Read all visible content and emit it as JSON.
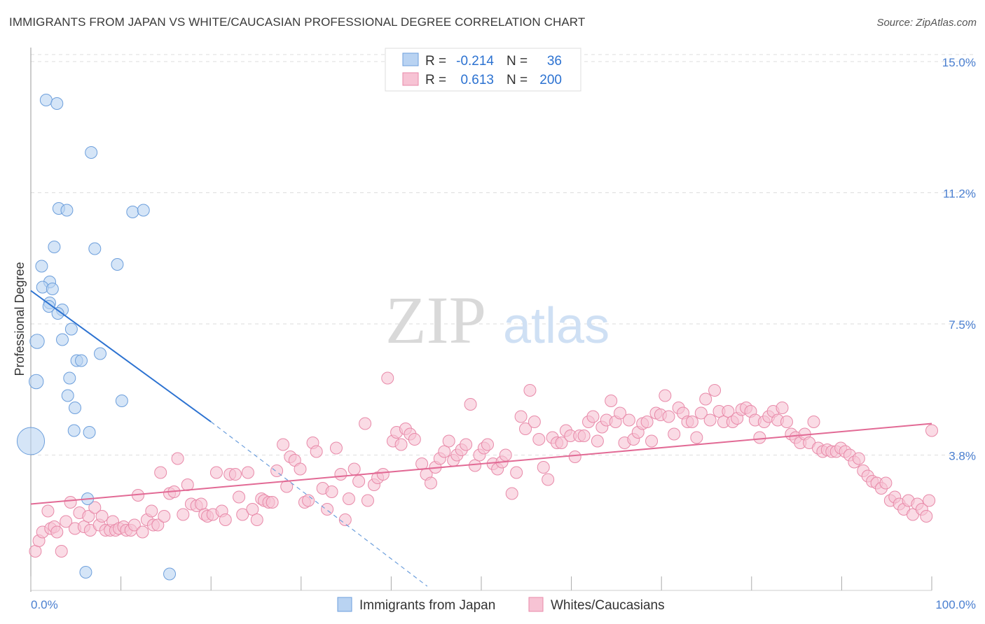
{
  "title": "IMMIGRANTS FROM JAPAN VS WHITE/CAUCASIAN PROFESSIONAL DEGREE CORRELATION CHART",
  "source": "Source: ZipAtlas.com",
  "watermark": {
    "zip": "ZIP",
    "atlas": "atlas"
  },
  "colors": {
    "blue_fill": "#b9d3f2",
    "blue_stroke": "#6d9fdc",
    "blue_line": "#2c72d1",
    "pink_fill": "#f7c3d4",
    "pink_stroke": "#e88aa9",
    "pink_line": "#e26a95",
    "tick_text": "#4a7fd0",
    "grid": "#dddddd"
  },
  "legend": {
    "rows": [
      {
        "r_label": "R =",
        "r_value": "-0.214",
        "n_label": "N =",
        "n_value": "36"
      },
      {
        "r_label": "R =",
        "r_value": "0.613",
        "n_label": "N =",
        "n_value": "200"
      }
    ]
  },
  "bottom_legend": [
    {
      "label": "Immigrants from Japan",
      "color": "blue"
    },
    {
      "label": "Whites/Caucasians",
      "color": "pink"
    }
  ],
  "chart_data": {
    "type": "scatter",
    "title": "IMMIGRANTS FROM JAPAN VS WHITE/CAUCASIAN PROFESSIONAL DEGREE CORRELATION CHART",
    "xlabel": "",
    "ylabel": "Professional Degree",
    "x_tick_labels": [
      "0.0%",
      "100.0%"
    ],
    "y_tick_labels": [
      "3.8%",
      "7.5%",
      "11.2%",
      "15.0%"
    ],
    "y_ticks": [
      3.75,
      7.5,
      11.25,
      15.0
    ],
    "xlim": [
      0,
      100
    ],
    "ylim": [
      0,
      15.4
    ],
    "grid": "horizontal dashed",
    "legend_position": "top-center",
    "series": [
      {
        "name": "Immigrants from Japan",
        "color": "blue",
        "r": -0.214,
        "n": 36,
        "trend": {
          "x": [
            0,
            20
          ],
          "y": [
            8.45,
            4.7
          ]
        },
        "trend_extension": {
          "x": [
            20,
            44
          ],
          "y": [
            4.7,
            0.0
          ]
        },
        "points": [
          {
            "x": 1.7,
            "y": 13.9,
            "s": 1
          },
          {
            "x": 2.9,
            "y": 13.8,
            "s": 1
          },
          {
            "x": 6.7,
            "y": 12.4,
            "s": 1
          },
          {
            "x": 3.1,
            "y": 10.8,
            "s": 1
          },
          {
            "x": 4.0,
            "y": 10.75,
            "s": 1
          },
          {
            "x": 11.3,
            "y": 10.7,
            "s": 1
          },
          {
            "x": 12.5,
            "y": 10.75,
            "s": 1
          },
          {
            "x": 2.6,
            "y": 9.7,
            "s": 1
          },
          {
            "x": 7.1,
            "y": 9.65,
            "s": 1
          },
          {
            "x": 9.6,
            "y": 9.2,
            "s": 1
          },
          {
            "x": 1.2,
            "y": 9.15,
            "s": 1
          },
          {
            "x": 2.1,
            "y": 8.7,
            "s": 1
          },
          {
            "x": 1.3,
            "y": 8.55,
            "s": 1
          },
          {
            "x": 2.4,
            "y": 8.5,
            "s": 1
          },
          {
            "x": 2.1,
            "y": 8.1,
            "s": 1
          },
          {
            "x": 2.0,
            "y": 8.0,
            "s": 1
          },
          {
            "x": 3.5,
            "y": 7.9,
            "s": 1
          },
          {
            "x": 3.0,
            "y": 7.8,
            "s": 1
          },
          {
            "x": 4.5,
            "y": 7.35,
            "s": 1
          },
          {
            "x": 0.7,
            "y": 7.0,
            "s": 1.2
          },
          {
            "x": 3.5,
            "y": 7.05,
            "s": 1
          },
          {
            "x": 7.7,
            "y": 6.65,
            "s": 1
          },
          {
            "x": 5.1,
            "y": 6.45,
            "s": 1
          },
          {
            "x": 5.6,
            "y": 6.45,
            "s": 1
          },
          {
            "x": 4.3,
            "y": 5.95,
            "s": 1
          },
          {
            "x": 0.6,
            "y": 5.85,
            "s": 1.2
          },
          {
            "x": 4.1,
            "y": 5.45,
            "s": 1
          },
          {
            "x": 10.1,
            "y": 5.3,
            "s": 1
          },
          {
            "x": 4.9,
            "y": 5.1,
            "s": 1
          },
          {
            "x": 4.8,
            "y": 4.45,
            "s": 1
          },
          {
            "x": 6.5,
            "y": 4.4,
            "s": 1
          },
          {
            "x": 0.0,
            "y": 4.15,
            "s": 2.3
          },
          {
            "x": 6.3,
            "y": 2.5,
            "s": 1
          },
          {
            "x": 6.1,
            "y": 0.4,
            "s": 1
          },
          {
            "x": 15.4,
            "y": 0.35,
            "s": 1
          }
        ]
      },
      {
        "name": "Whites/Caucasians",
        "color": "pink",
        "r": 0.613,
        "n": 200,
        "trend": {
          "x": [
            0,
            100
          ],
          "y": [
            2.35,
            4.65
          ]
        },
        "points": [
          {
            "x": 0.5,
            "y": 1.0
          },
          {
            "x": 0.9,
            "y": 1.3
          },
          {
            "x": 1.3,
            "y": 1.55
          },
          {
            "x": 1.9,
            "y": 2.15
          },
          {
            "x": 2.2,
            "y": 1.65
          },
          {
            "x": 2.6,
            "y": 1.7
          },
          {
            "x": 2.9,
            "y": 1.55
          },
          {
            "x": 3.4,
            "y": 1.0
          },
          {
            "x": 3.9,
            "y": 1.85
          },
          {
            "x": 4.4,
            "y": 2.4
          },
          {
            "x": 4.9,
            "y": 1.65
          },
          {
            "x": 5.4,
            "y": 2.1
          },
          {
            "x": 5.9,
            "y": 1.7
          },
          {
            "x": 6.4,
            "y": 2.0
          },
          {
            "x": 6.6,
            "y": 1.6
          },
          {
            "x": 7.1,
            "y": 2.25
          },
          {
            "x": 7.6,
            "y": 1.75
          },
          {
            "x": 7.9,
            "y": 2.0
          },
          {
            "x": 8.3,
            "y": 1.6
          },
          {
            "x": 8.8,
            "y": 1.6
          },
          {
            "x": 9.1,
            "y": 1.85
          },
          {
            "x": 9.4,
            "y": 1.6
          },
          {
            "x": 9.8,
            "y": 1.65
          },
          {
            "x": 10.3,
            "y": 1.7
          },
          {
            "x": 10.6,
            "y": 1.6
          },
          {
            "x": 11.1,
            "y": 1.6
          },
          {
            "x": 11.5,
            "y": 1.75
          },
          {
            "x": 11.9,
            "y": 2.6
          },
          {
            "x": 12.4,
            "y": 1.55
          },
          {
            "x": 12.9,
            "y": 1.9
          },
          {
            "x": 13.4,
            "y": 2.15
          },
          {
            "x": 13.6,
            "y": 1.75
          },
          {
            "x": 14.1,
            "y": 1.75
          },
          {
            "x": 14.4,
            "y": 3.25
          },
          {
            "x": 14.8,
            "y": 2.0
          },
          {
            "x": 15.4,
            "y": 2.65
          },
          {
            "x": 15.9,
            "y": 2.7
          },
          {
            "x": 16.3,
            "y": 3.65
          },
          {
            "x": 16.9,
            "y": 2.05
          },
          {
            "x": 17.4,
            "y": 2.9
          },
          {
            "x": 17.8,
            "y": 2.35
          },
          {
            "x": 18.4,
            "y": 2.3
          },
          {
            "x": 18.9,
            "y": 2.35
          },
          {
            "x": 19.3,
            "y": 2.05
          },
          {
            "x": 19.6,
            "y": 2.0
          },
          {
            "x": 20.2,
            "y": 2.05
          },
          {
            "x": 20.6,
            "y": 3.25
          },
          {
            "x": 21.2,
            "y": 2.15
          },
          {
            "x": 21.6,
            "y": 1.9
          },
          {
            "x": 22.1,
            "y": 3.2
          },
          {
            "x": 22.7,
            "y": 3.2
          },
          {
            "x": 23.1,
            "y": 2.55
          },
          {
            "x": 23.5,
            "y": 2.05
          },
          {
            "x": 24.1,
            "y": 3.25
          },
          {
            "x": 24.6,
            "y": 2.2
          },
          {
            "x": 25.1,
            "y": 1.9
          },
          {
            "x": 25.6,
            "y": 2.5
          },
          {
            "x": 25.9,
            "y": 2.45
          },
          {
            "x": 26.4,
            "y": 2.4
          },
          {
            "x": 26.8,
            "y": 2.4
          },
          {
            "x": 27.3,
            "y": 3.3
          },
          {
            "x": 28.0,
            "y": 4.05
          },
          {
            "x": 28.4,
            "y": 2.85
          },
          {
            "x": 28.8,
            "y": 3.7
          },
          {
            "x": 29.3,
            "y": 3.6
          },
          {
            "x": 29.9,
            "y": 3.35
          },
          {
            "x": 30.4,
            "y": 2.4
          },
          {
            "x": 30.8,
            "y": 2.45
          },
          {
            "x": 31.3,
            "y": 4.1
          },
          {
            "x": 31.7,
            "y": 3.85
          },
          {
            "x": 32.4,
            "y": 2.8
          },
          {
            "x": 32.9,
            "y": 2.2
          },
          {
            "x": 33.4,
            "y": 2.7
          },
          {
            "x": 33.9,
            "y": 3.95
          },
          {
            "x": 34.4,
            "y": 3.2
          },
          {
            "x": 34.9,
            "y": 1.9
          },
          {
            "x": 35.3,
            "y": 2.5
          },
          {
            "x": 35.9,
            "y": 3.35
          },
          {
            "x": 36.4,
            "y": 3.0
          },
          {
            "x": 37.1,
            "y": 4.65
          },
          {
            "x": 37.4,
            "y": 2.45
          },
          {
            "x": 38.1,
            "y": 2.9
          },
          {
            "x": 38.5,
            "y": 3.1
          },
          {
            "x": 39.1,
            "y": 3.2
          },
          {
            "x": 39.6,
            "y": 5.95
          },
          {
            "x": 40.2,
            "y": 4.15
          },
          {
            "x": 40.6,
            "y": 4.4
          },
          {
            "x": 41.1,
            "y": 4.05
          },
          {
            "x": 41.6,
            "y": 4.5
          },
          {
            "x": 42.1,
            "y": 4.35
          },
          {
            "x": 42.6,
            "y": 4.2
          },
          {
            "x": 43.4,
            "y": 3.5
          },
          {
            "x": 43.9,
            "y": 3.2
          },
          {
            "x": 44.4,
            "y": 2.95
          },
          {
            "x": 44.9,
            "y": 3.4
          },
          {
            "x": 45.4,
            "y": 3.65
          },
          {
            "x": 45.9,
            "y": 3.85
          },
          {
            "x": 46.4,
            "y": 4.15
          },
          {
            "x": 46.9,
            "y": 3.6
          },
          {
            "x": 47.3,
            "y": 3.75
          },
          {
            "x": 47.8,
            "y": 3.9
          },
          {
            "x": 48.3,
            "y": 4.05
          },
          {
            "x": 48.8,
            "y": 5.2
          },
          {
            "x": 49.3,
            "y": 3.45
          },
          {
            "x": 49.8,
            "y": 3.75
          },
          {
            "x": 50.3,
            "y": 3.95
          },
          {
            "x": 50.7,
            "y": 4.05
          },
          {
            "x": 51.3,
            "y": 3.5
          },
          {
            "x": 51.8,
            "y": 3.35
          },
          {
            "x": 52.3,
            "y": 3.55
          },
          {
            "x": 52.7,
            "y": 3.75
          },
          {
            "x": 53.4,
            "y": 2.65
          },
          {
            "x": 53.9,
            "y": 3.25
          },
          {
            "x": 54.4,
            "y": 4.85
          },
          {
            "x": 54.9,
            "y": 4.5
          },
          {
            "x": 55.4,
            "y": 5.6
          },
          {
            "x": 55.9,
            "y": 4.7
          },
          {
            "x": 56.4,
            "y": 4.2
          },
          {
            "x": 56.9,
            "y": 3.4
          },
          {
            "x": 57.4,
            "y": 3.05
          },
          {
            "x": 57.9,
            "y": 4.25
          },
          {
            "x": 58.4,
            "y": 4.1
          },
          {
            "x": 58.9,
            "y": 4.1
          },
          {
            "x": 59.4,
            "y": 4.45
          },
          {
            "x": 59.9,
            "y": 4.3
          },
          {
            "x": 60.4,
            "y": 3.7
          },
          {
            "x": 60.9,
            "y": 4.3
          },
          {
            "x": 61.4,
            "y": 4.3
          },
          {
            "x": 61.9,
            "y": 4.7
          },
          {
            "x": 62.4,
            "y": 4.85
          },
          {
            "x": 62.9,
            "y": 4.15
          },
          {
            "x": 63.4,
            "y": 4.55
          },
          {
            "x": 63.9,
            "y": 4.75
          },
          {
            "x": 64.4,
            "y": 5.3
          },
          {
            "x": 64.9,
            "y": 4.7
          },
          {
            "x": 65.4,
            "y": 4.95
          },
          {
            "x": 65.9,
            "y": 4.1
          },
          {
            "x": 66.4,
            "y": 4.75
          },
          {
            "x": 66.9,
            "y": 4.2
          },
          {
            "x": 67.4,
            "y": 4.4
          },
          {
            "x": 67.9,
            "y": 4.65
          },
          {
            "x": 68.4,
            "y": 4.7
          },
          {
            "x": 68.9,
            "y": 4.15
          },
          {
            "x": 69.4,
            "y": 4.95
          },
          {
            "x": 69.9,
            "y": 4.9
          },
          {
            "x": 70.4,
            "y": 5.45
          },
          {
            "x": 70.8,
            "y": 4.85
          },
          {
            "x": 71.4,
            "y": 4.35
          },
          {
            "x": 71.9,
            "y": 5.1
          },
          {
            "x": 72.4,
            "y": 4.95
          },
          {
            "x": 72.9,
            "y": 4.7
          },
          {
            "x": 73.4,
            "y": 4.7
          },
          {
            "x": 73.9,
            "y": 4.25
          },
          {
            "x": 74.4,
            "y": 4.95
          },
          {
            "x": 74.9,
            "y": 5.35
          },
          {
            "x": 75.4,
            "y": 4.75
          },
          {
            "x": 75.9,
            "y": 5.6
          },
          {
            "x": 76.4,
            "y": 5.0
          },
          {
            "x": 76.9,
            "y": 4.7
          },
          {
            "x": 77.4,
            "y": 5.0
          },
          {
            "x": 77.9,
            "y": 4.7
          },
          {
            "x": 78.4,
            "y": 4.8
          },
          {
            "x": 78.9,
            "y": 5.05
          },
          {
            "x": 79.4,
            "y": 5.1
          },
          {
            "x": 79.9,
            "y": 5.0
          },
          {
            "x": 80.4,
            "y": 4.75
          },
          {
            "x": 80.9,
            "y": 4.25
          },
          {
            "x": 81.4,
            "y": 4.7
          },
          {
            "x": 81.9,
            "y": 4.85
          },
          {
            "x": 82.4,
            "y": 5.0
          },
          {
            "x": 82.9,
            "y": 4.75
          },
          {
            "x": 83.4,
            "y": 5.1
          },
          {
            "x": 83.9,
            "y": 4.7
          },
          {
            "x": 84.4,
            "y": 4.35
          },
          {
            "x": 84.9,
            "y": 4.25
          },
          {
            "x": 85.4,
            "y": 4.1
          },
          {
            "x": 85.9,
            "y": 4.35
          },
          {
            "x": 86.4,
            "y": 4.1
          },
          {
            "x": 86.9,
            "y": 4.7
          },
          {
            "x": 87.4,
            "y": 3.95
          },
          {
            "x": 87.9,
            "y": 3.85
          },
          {
            "x": 88.4,
            "y": 3.9
          },
          {
            "x": 88.9,
            "y": 3.85
          },
          {
            "x": 89.4,
            "y": 3.85
          },
          {
            "x": 89.9,
            "y": 3.95
          },
          {
            "x": 90.4,
            "y": 3.85
          },
          {
            "x": 90.9,
            "y": 3.75
          },
          {
            "x": 91.4,
            "y": 3.55
          },
          {
            "x": 91.9,
            "y": 3.65
          },
          {
            "x": 92.4,
            "y": 3.3
          },
          {
            "x": 92.9,
            "y": 3.15
          },
          {
            "x": 93.4,
            "y": 3.0
          },
          {
            "x": 93.9,
            "y": 2.95
          },
          {
            "x": 94.4,
            "y": 2.8
          },
          {
            "x": 94.9,
            "y": 2.95
          },
          {
            "x": 95.4,
            "y": 2.45
          },
          {
            "x": 95.9,
            "y": 2.55
          },
          {
            "x": 96.4,
            "y": 2.35
          },
          {
            "x": 96.9,
            "y": 2.2
          },
          {
            "x": 97.4,
            "y": 2.45
          },
          {
            "x": 97.9,
            "y": 2.05
          },
          {
            "x": 98.4,
            "y": 2.35
          },
          {
            "x": 98.9,
            "y": 2.2
          },
          {
            "x": 99.4,
            "y": 2.0
          },
          {
            "x": 99.7,
            "y": 2.45
          },
          {
            "x": 100.0,
            "y": 4.45
          }
        ]
      }
    ]
  }
}
